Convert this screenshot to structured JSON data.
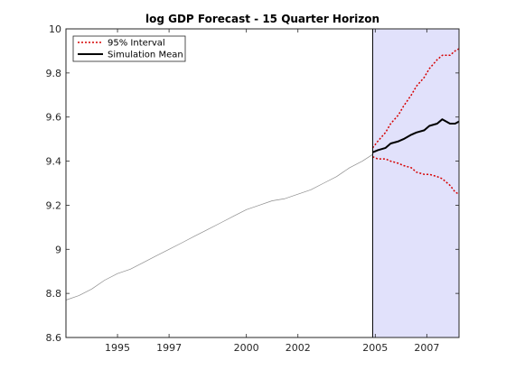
{
  "chart_data": {
    "type": "line",
    "title": "log GDP Forecast - 15 Quarter Horizon",
    "xlabel": "",
    "ylabel": "",
    "xlim": [
      1993.0,
      2008.25
    ],
    "ylim": [
      8.6,
      10.0
    ],
    "x_ticks": [
      1995,
      1997,
      2000,
      2002,
      2005,
      2007
    ],
    "y_ticks": [
      8.6,
      8.8,
      9.0,
      9.2,
      9.4,
      9.6,
      9.8,
      10.0
    ],
    "y_tick_labels": [
      "8.6",
      "8.8",
      "9",
      "9.2",
      "9.4",
      "9.6",
      "9.8",
      "10"
    ],
    "grid": false,
    "legend_position": "top-left",
    "forecast_region": {
      "x_start": 2004.9,
      "x_end": 2008.25,
      "color": "#e1e1fb"
    },
    "series": [
      {
        "key": "history",
        "color": "#8c8c8c",
        "x": [
          1993.0,
          1993.5,
          1994.0,
          1994.5,
          1995.0,
          1995.5,
          1996.0,
          1996.5,
          1997.0,
          1997.5,
          1998.0,
          1998.5,
          1999.0,
          1999.5,
          2000.0,
          2000.5,
          2001.0,
          2001.5,
          2002.0,
          2002.5,
          2003.0,
          2003.5,
          2004.0,
          2004.5,
          2004.9
        ],
        "values": [
          8.77,
          8.79,
          8.82,
          8.86,
          8.89,
          8.91,
          8.94,
          8.97,
          9.0,
          9.03,
          9.06,
          9.09,
          9.12,
          9.15,
          9.18,
          9.2,
          9.22,
          9.23,
          9.25,
          9.27,
          9.3,
          9.33,
          9.37,
          9.4,
          9.43
        ]
      },
      {
        "name": "Simulation Mean",
        "color": "#000000",
        "x": [
          2004.9,
          2005.1,
          2005.4,
          2005.6,
          2005.9,
          2006.1,
          2006.4,
          2006.6,
          2006.9,
          2007.1,
          2007.4,
          2007.6,
          2007.9,
          2008.1,
          2008.25
        ],
        "values": [
          9.44,
          9.45,
          9.46,
          9.48,
          9.49,
          9.5,
          9.52,
          9.53,
          9.54,
          9.56,
          9.57,
          9.59,
          9.57,
          9.57,
          9.58
        ]
      },
      {
        "name": "95% Interval",
        "color": "#d60000",
        "x": [
          2004.9,
          2005.1,
          2005.4,
          2005.6,
          2005.9,
          2006.1,
          2006.4,
          2006.6,
          2006.9,
          2007.1,
          2007.4,
          2007.6,
          2007.9,
          2008.1,
          2008.25
        ],
        "values": [
          9.46,
          9.49,
          9.53,
          9.57,
          9.61,
          9.65,
          9.7,
          9.74,
          9.78,
          9.82,
          9.86,
          9.88,
          9.88,
          9.9,
          9.91
        ]
      },
      {
        "key": "interval-lower",
        "color": "#d60000",
        "x": [
          2004.9,
          2005.1,
          2005.4,
          2005.6,
          2005.9,
          2006.1,
          2006.4,
          2006.6,
          2006.9,
          2007.1,
          2007.4,
          2007.6,
          2007.9,
          2008.1,
          2008.25
        ],
        "values": [
          9.42,
          9.41,
          9.41,
          9.4,
          9.39,
          9.38,
          9.37,
          9.35,
          9.34,
          9.34,
          9.33,
          9.32,
          9.29,
          9.26,
          9.25
        ]
      }
    ]
  }
}
